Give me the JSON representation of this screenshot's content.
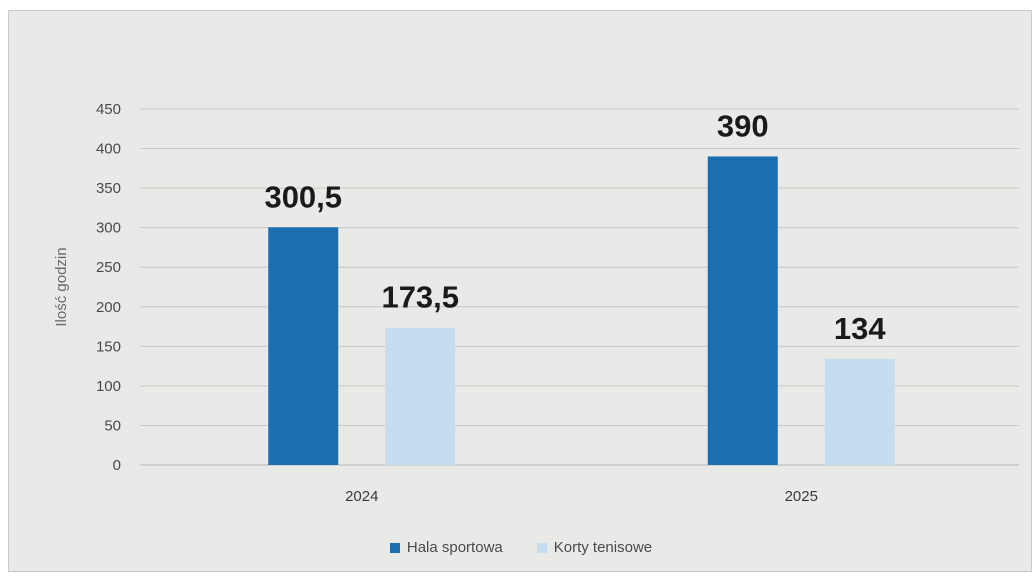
{
  "chart_data": {
    "type": "bar",
    "categories": [
      "2024",
      "2025"
    ],
    "series": [
      {
        "name": "Hala sportowa",
        "values": [
          300.5,
          390
        ],
        "labels": [
          "300,5",
          "390"
        ],
        "color": "#1b6fb0"
      },
      {
        "name": "Korty tenisowe",
        "values": [
          173.5,
          134
        ],
        "labels": [
          "173,5",
          "134"
        ],
        "color": "#c6ddf0"
      }
    ],
    "ylabel": "Ilość godzin",
    "xlabel": "",
    "ylim": [
      0,
      450
    ],
    "yticks": [
      0,
      50,
      100,
      150,
      200,
      250,
      300,
      350,
      400,
      450
    ],
    "grid": true,
    "legend_position": "bottom"
  }
}
